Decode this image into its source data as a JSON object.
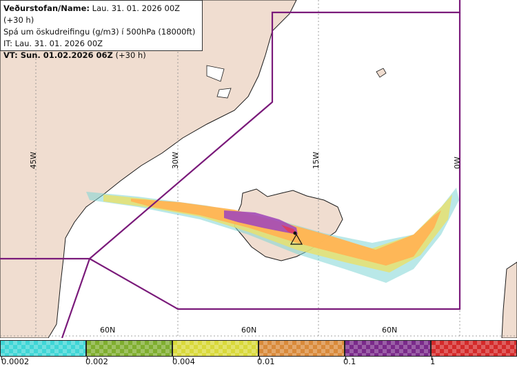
{
  "header": {
    "name_label": "Veðurstofan/Name:",
    "name_value": "Lau. 31. 01. 2026 00Z (+30 h)",
    "forecast_desc": "Spá um öskudreifingu (g/m3) í 500hPa (18000ft)",
    "it_line": "IT: Lau. 31. 01. 2026 00Z",
    "vt_label": "VT: Sun. 01.02.2026 06Z",
    "vt_suffix": "(+30 h)"
  },
  "map": {
    "longitude_labels": [
      "45W",
      "30W",
      "15W",
      "0W"
    ],
    "latitude_labels": [
      "60N",
      "60N",
      "60N"
    ],
    "colors": {
      "land": "#f0ddd0",
      "sea": "#ffffff",
      "coast": "#1a1a1a",
      "fir_boundary": "#7a1a7a",
      "grid": "#888888"
    }
  },
  "legend": {
    "levels": [
      {
        "label": "0.0002",
        "color": "#3fd6d6"
      },
      {
        "label": "0.002",
        "color": "#7fae2f"
      },
      {
        "label": "0.004",
        "color": "#d9d93a"
      },
      {
        "label": "0.01",
        "color": "#d98a3a"
      },
      {
        "label": "0.1",
        "color": "#7a2a8a"
      },
      {
        "label": "1",
        "color": "#d42a2a"
      }
    ]
  }
}
